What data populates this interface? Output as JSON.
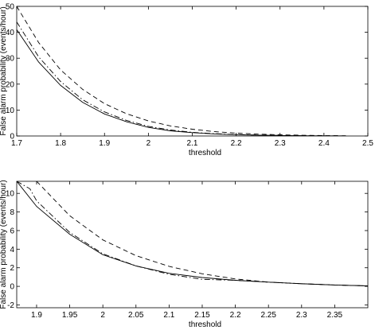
{
  "chart_data": [
    {
      "type": "line",
      "xlabel": "threshold",
      "ylabel": "False alarm probability (events/hour)",
      "xlim": [
        1.7,
        2.5
      ],
      "ylim": [
        0,
        50
      ],
      "xticks": [
        "1.7",
        "1.8",
        "1.9",
        "2",
        "2.1",
        "2.2",
        "2.3",
        "2.4",
        "2.5"
      ],
      "yticks": [
        "0",
        "10",
        "20",
        "30",
        "40",
        "50"
      ],
      "xtick_values": [
        1.7,
        1.8,
        1.9,
        2.0,
        2.1,
        2.2,
        2.3,
        2.4,
        2.5
      ],
      "ytick_values": [
        0,
        10,
        20,
        30,
        40,
        50
      ],
      "grid": false,
      "series": [
        {
          "style": "solid",
          "x": [
            1.7,
            1.75,
            1.8,
            1.85,
            1.9,
            1.95,
            2.0,
            2.05,
            2.1,
            2.15,
            2.2,
            2.25,
            2.3,
            2.35,
            2.4,
            2.45
          ],
          "y": [
            41,
            28.5,
            19.5,
            13,
            8.5,
            5.5,
            3.3,
            2.0,
            1.3,
            0.8,
            0.5,
            0.3,
            0.2,
            0.1,
            0.05,
            0.02
          ]
        },
        {
          "style": "dashdot",
          "x": [
            1.7,
            1.75,
            1.8,
            1.85,
            1.9,
            1.95,
            2.0,
            2.05,
            2.1,
            2.15,
            2.2,
            2.25,
            2.3,
            2.35,
            2.4,
            2.45
          ],
          "y": [
            44,
            30.5,
            21,
            14,
            9.3,
            6.0,
            3.7,
            2.3,
            1.4,
            0.9,
            0.55,
            0.33,
            0.2,
            0.1,
            0.05,
            0.02
          ]
        },
        {
          "style": "dashed",
          "x": [
            1.7,
            1.75,
            1.8,
            1.85,
            1.9,
            1.95,
            2.0,
            2.05,
            2.1,
            2.15,
            2.2,
            2.25,
            2.3,
            2.35,
            2.4,
            2.45
          ],
          "y": [
            50,
            36,
            25.5,
            18,
            12.5,
            8.6,
            5.8,
            3.9,
            2.6,
            1.7,
            1.1,
            0.7,
            0.45,
            0.28,
            0.15,
            0.08
          ]
        }
      ]
    },
    {
      "type": "line",
      "xlabel": "threshold",
      "ylabel": "False alarm probability (events/hour)",
      "xlim": [
        1.87,
        2.4
      ],
      "ylim": [
        -2.3,
        11.3
      ],
      "xticks": [
        "1.9",
        "1.95",
        "2",
        "2.05",
        "2.1",
        "2.15",
        "2.2",
        "2.25",
        "2.3",
        "2.35"
      ],
      "yticks": [
        "-2",
        "0",
        "2",
        "4",
        "6",
        "8",
        "10"
      ],
      "xtick_values": [
        1.9,
        1.95,
        2.0,
        2.05,
        2.1,
        2.15,
        2.2,
        2.25,
        2.3,
        2.35
      ],
      "ytick_values": [
        -2,
        0,
        2,
        4,
        6,
        8,
        10
      ],
      "grid": false,
      "series": [
        {
          "style": "solid",
          "x": [
            1.87,
            1.9,
            1.95,
            2.0,
            2.05,
            2.1,
            2.15,
            2.2,
            2.25,
            2.3,
            2.35,
            2.4
          ],
          "y": [
            11.3,
            8.6,
            5.6,
            3.4,
            2.2,
            1.4,
            0.95,
            0.65,
            0.45,
            0.28,
            0.15,
            0.05
          ]
        },
        {
          "style": "dashdot",
          "x": [
            1.87,
            1.89,
            1.9,
            1.95,
            2.0,
            2.05,
            2.1,
            2.15,
            2.2,
            2.25,
            2.3,
            2.35,
            2.4
          ],
          "y": [
            11.3,
            10.5,
            9.2,
            5.8,
            3.5,
            2.2,
            1.3,
            0.75,
            0.65,
            0.45,
            0.28,
            0.15,
            0.05
          ]
        },
        {
          "style": "dashed",
          "x": [
            1.9,
            1.95,
            2.0,
            2.05,
            2.1,
            2.15,
            2.2,
            2.25,
            2.3,
            2.35,
            2.4
          ],
          "y": [
            11.3,
            7.6,
            5.0,
            3.3,
            2.15,
            1.35,
            0.8,
            0.45,
            0.28,
            0.15,
            0.05
          ]
        }
      ]
    }
  ]
}
